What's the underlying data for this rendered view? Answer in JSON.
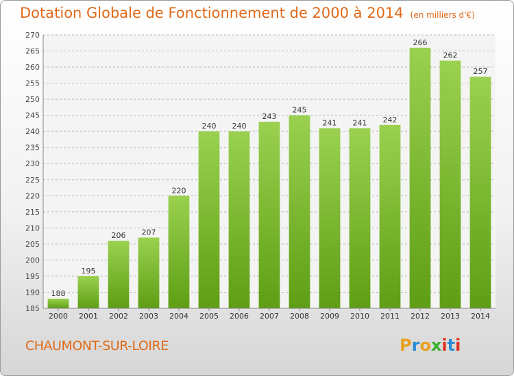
{
  "header": {
    "title": "Dotation Globale de Fonctionnement de 2000 à 2014",
    "subtitle": "(en milliers d'€)"
  },
  "footer": {
    "commune": "CHAUMONT-SUR-LOIRE",
    "logo": {
      "letters": [
        "P",
        "r",
        "o",
        "x",
        "i",
        "t",
        "i"
      ],
      "colors": [
        "#e8a020",
        "#2a8ad0",
        "#e8a020",
        "#3ab030",
        "#e03020",
        "#2a8ad0",
        "#e03020"
      ]
    }
  },
  "chart_data": {
    "type": "bar",
    "categories": [
      "2000",
      "2001",
      "2002",
      "2003",
      "2004",
      "2005",
      "2006",
      "2007",
      "2008",
      "2009",
      "2010",
      "2011",
      "2012",
      "2013",
      "2014"
    ],
    "values": [
      188,
      195,
      206,
      207,
      220,
      240,
      240,
      243,
      245,
      241,
      241,
      242,
      266,
      262,
      257
    ],
    "ylim": [
      185,
      270
    ],
    "yticks": [
      185,
      190,
      195,
      200,
      205,
      210,
      215,
      220,
      225,
      230,
      235,
      240,
      245,
      250,
      255,
      260,
      265,
      270
    ],
    "bar_color": "#7ec030",
    "grid": true
  }
}
